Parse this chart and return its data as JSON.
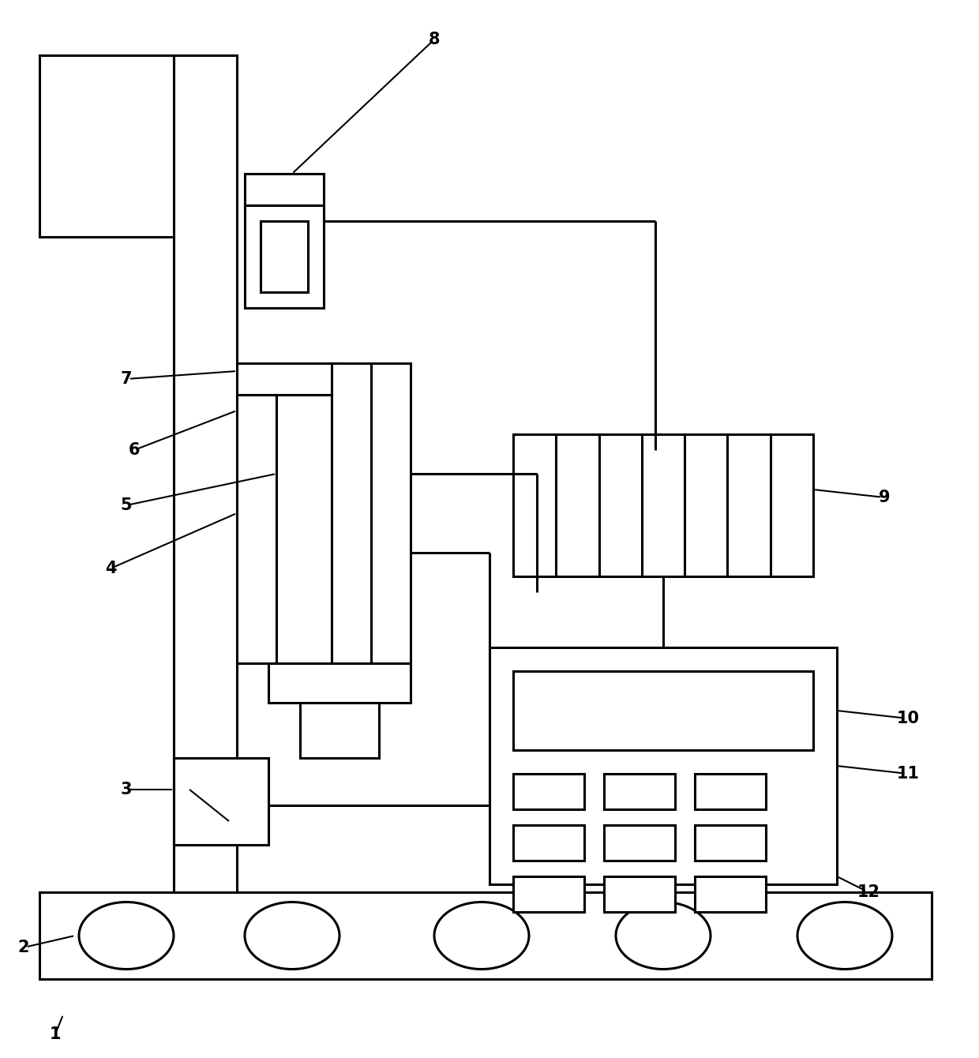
{
  "bg": "#ffffff",
  "lc": "#000000",
  "lw": 2.2,
  "fw": 12.4,
  "fh": 13.4
}
